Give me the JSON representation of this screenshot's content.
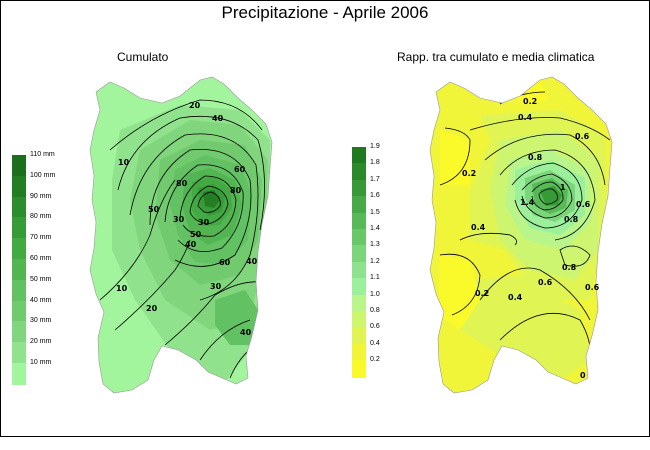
{
  "title": "Precipitazione - Aprile 2006",
  "left_map": {
    "title": "Cumulato",
    "legend": {
      "labels": [
        "110 mm",
        "100 mm",
        "90 mm",
        "80 mm",
        "70 mm",
        "60 mm",
        "50 mm",
        "40 mm",
        "30 mm",
        "20 mm",
        "10 mm"
      ],
      "colors": [
        "#1c6e1c",
        "#237d23",
        "#2d8c2d",
        "#379b37",
        "#43a943",
        "#52b552",
        "#62c162",
        "#71cb6e",
        "#81d67d",
        "#90e38c",
        "#a2f59d"
      ]
    },
    "contour_labels": [
      "20",
      "40",
      "10",
      "80",
      "60",
      "80",
      "50",
      "30",
      "50",
      "40",
      "60",
      "30",
      "40",
      "10",
      "30",
      "20",
      "40"
    ]
  },
  "right_map": {
    "title": "Rapp. tra cumulato e media climatica",
    "legend": {
      "labels": [
        "1.9",
        "1.8",
        "1.7",
        "1.6",
        "1.5",
        "1.4",
        "1.3",
        "1.2",
        "1.1",
        "1.0",
        "0.8",
        "0.6",
        "0.4",
        "0.2"
      ],
      "colors": [
        "#1f7a1f",
        "#2a8a2a",
        "#379a37",
        "#46aa46",
        "#57ba57",
        "#68c868",
        "#7bd57b",
        "#8ee28e",
        "#9cf09c",
        "#b9f58b",
        "#cdf56f",
        "#e0f553",
        "#f0f53a",
        "#fafa2a"
      ]
    },
    "contour_labels": [
      "0.2",
      "0.4",
      "0.6",
      "0.2",
      "0.8",
      "1.4",
      "1",
      "0.6",
      "0.4",
      "0.8",
      "0.2",
      "0.6",
      "0.4",
      "0.8",
      "0.6",
      "0"
    ]
  }
}
